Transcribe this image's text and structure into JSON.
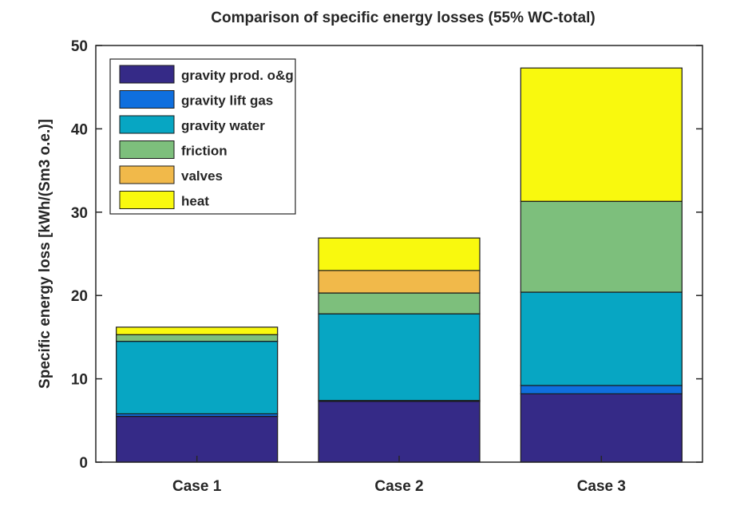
{
  "chart_data": {
    "type": "bar",
    "stacked": true,
    "title": "Comparison of specific energy losses (55% WC-total)",
    "xlabel": "",
    "ylabel": "Specific energy loss [kWh/(Sm3 o.e.)]",
    "ylim": [
      0,
      50
    ],
    "yticks": [
      "0",
      "10",
      "20",
      "30",
      "40",
      "50"
    ],
    "categories": [
      "Case 1",
      "Case 2",
      "Case 3"
    ],
    "legend_position": "top-left",
    "grid": false,
    "series": [
      {
        "name": "gravity prod. o&g",
        "color": "#352a87",
        "values": [
          5.5,
          7.3,
          8.2
        ]
      },
      {
        "name": "gravity lift gas",
        "color": "#0f6fde",
        "values": [
          0.3,
          0.1,
          1.0
        ]
      },
      {
        "name": "gravity water",
        "color": "#07a6c3",
        "values": [
          8.7,
          10.4,
          11.2
        ]
      },
      {
        "name": "friction",
        "color": "#7dbf7c",
        "values": [
          0.8,
          2.5,
          10.9
        ]
      },
      {
        "name": "valves",
        "color": "#f1b94a",
        "values": [
          0.0,
          2.7,
          0.0
        ]
      },
      {
        "name": "heat",
        "color": "#f9f90e",
        "values": [
          0.9,
          3.9,
          16.0
        ]
      }
    ]
  }
}
